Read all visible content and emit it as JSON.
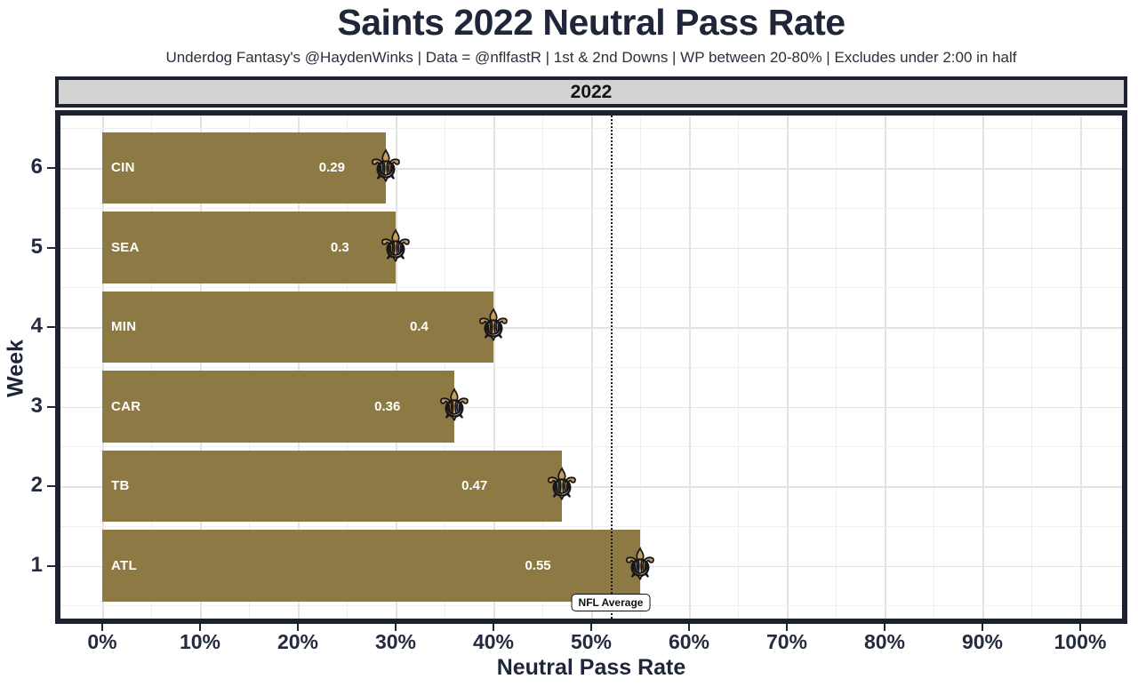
{
  "header": {
    "title": "Saints 2022 Neutral Pass Rate",
    "subtitle": "Underdog Fantasy's @HaydenWinks | Data = @nflfastR | 1st & 2nd Downs | WP between 20-80% | Excludes under 2:00 in half"
  },
  "facet": {
    "label": "2022"
  },
  "chart_data": {
    "type": "bar",
    "orientation": "horizontal",
    "title": "Saints 2022 Neutral Pass Rate",
    "xlabel": "Neutral Pass Rate",
    "ylabel": "Week",
    "xlim": [
      0,
      1.0
    ],
    "x_tick_values": [
      0,
      0.1,
      0.2,
      0.3,
      0.4,
      0.5,
      0.6,
      0.7,
      0.8,
      0.9,
      1.0
    ],
    "x_tick_labels": [
      "0%",
      "10%",
      "20%",
      "30%",
      "40%",
      "50%",
      "60%",
      "70%",
      "80%",
      "90%",
      "100%"
    ],
    "y_categories": [
      "6",
      "5",
      "4",
      "3",
      "2",
      "1"
    ],
    "grid": true,
    "legend": false,
    "bars": [
      {
        "week": "6",
        "opponent": "CIN",
        "value": 0.29,
        "value_label": "0.29"
      },
      {
        "week": "5",
        "opponent": "SEA",
        "value": 0.3,
        "value_label": "0.3"
      },
      {
        "week": "4",
        "opponent": "MIN",
        "value": 0.4,
        "value_label": "0.4"
      },
      {
        "week": "3",
        "opponent": "CAR",
        "value": 0.36,
        "value_label": "0.36"
      },
      {
        "week": "2",
        "opponent": "TB",
        "value": 0.47,
        "value_label": "0.47"
      },
      {
        "week": "1",
        "opponent": "ATL",
        "value": 0.55,
        "value_label": "0.55"
      }
    ],
    "reference_line": {
      "value": 0.52,
      "label": "NFL Average",
      "style": "dotted"
    },
    "marker_icon": "fleur-de-lis",
    "colors": {
      "bar": "#8c7944",
      "marker_gold": "#c69d5d",
      "frame": "#1d2231",
      "strip_bg": "#d3d3d3",
      "text": "#20263a",
      "gridline": "#e6e6e6"
    }
  }
}
